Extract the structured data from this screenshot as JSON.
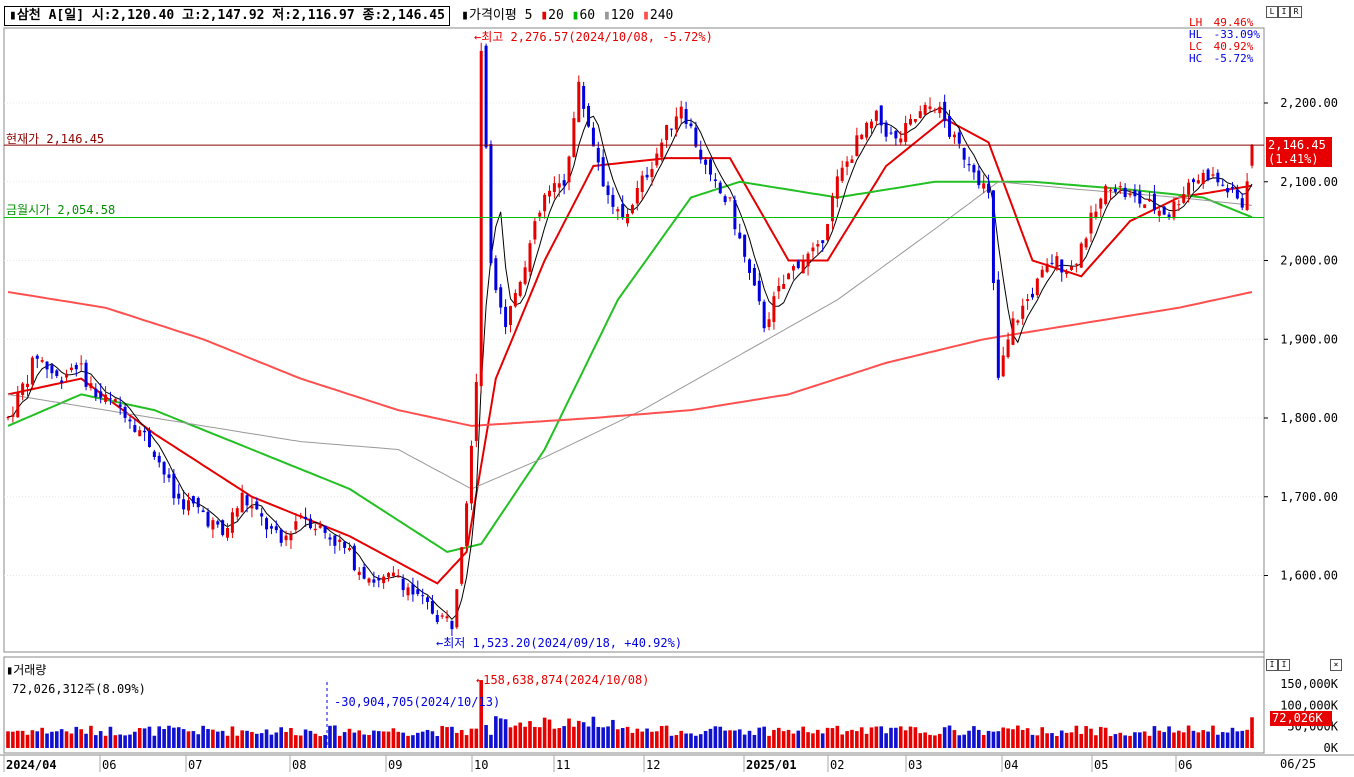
{
  "header": {
    "title": "삼천 A[일] 시:2,120.40 고:2,147.92 저:2,116.97 종:2,146.45",
    "ma_label": "가격이평",
    "ma_periods": [
      "5",
      "20",
      "60",
      "120",
      "240"
    ],
    "ma_colors": [
      "#000000",
      "#e60000",
      "#00b400",
      "#999999",
      "#ff5050"
    ]
  },
  "range_stats": [
    {
      "label": "LH",
      "value": "49.46%",
      "color": "#e60000"
    },
    {
      "label": "HL",
      "value": "-33.09%",
      "color": "#0000e0"
    },
    {
      "label": "LC",
      "value": "40.92%",
      "color": "#e60000"
    },
    {
      "label": "HC",
      "value": "-5.72%",
      "color": "#0000e0"
    }
  ],
  "annotations": {
    "current_price": "현재가 2,146.45",
    "monthly_open": "금월시가 2,054.58",
    "high": "←최고 2,276.57(2024/10/08, -5.72%)",
    "low": "←최저 1,523.20(2024/09/18, +40.92%)",
    "vol_max": "←158,638,874(2024/10/08)",
    "vol_min": "-30,904,705(2024/10/13)"
  },
  "price_tag": {
    "price": "2,146.45",
    "change": "(1.41%)"
  },
  "volume": {
    "title": "거래량",
    "current": "72,026,312주(8.09%)",
    "tag": "72,026K"
  },
  "x_labels": [
    {
      "text": "2024/04",
      "bold": true
    },
    {
      "text": "06",
      "bold": false
    },
    {
      "text": "07",
      "bold": false
    },
    {
      "text": "08",
      "bold": false
    },
    {
      "text": "09",
      "bold": false
    },
    {
      "text": "10",
      "bold": false
    },
    {
      "text": "11",
      "bold": false
    },
    {
      "text": "12",
      "bold": false
    },
    {
      "text": "2025/01",
      "bold": true
    },
    {
      "text": "02",
      "bold": false
    },
    {
      "text": "03",
      "bold": false
    },
    {
      "text": "04",
      "bold": false
    },
    {
      "text": "05",
      "bold": false
    },
    {
      "text": "06",
      "bold": false
    }
  ],
  "x_right_label": "06/25",
  "chart_data": {
    "type": "candlestick",
    "title": "삼천 A[일]",
    "x_range": [
      "2024/04",
      "2025/06/25"
    ],
    "y_price_ticks": [
      "2,200.00",
      "2,100.00",
      "2,000.00",
      "1,900.00",
      "1,800.00",
      "1,700.00",
      "1,600.00"
    ],
    "y_price_values": [
      2200,
      2100,
      2000,
      1900,
      1800,
      1700,
      1600
    ],
    "y_volume_ticks": [
      "150,000K",
      "100,000K",
      "50,000K",
      "0K"
    ],
    "y_volume_values": [
      150000,
      100000,
      50000,
      0
    ],
    "last_bar": {
      "open": 2120.4,
      "high": 2147.92,
      "low": 2116.97,
      "close": 2146.45
    },
    "reference_lines": [
      {
        "name": "현재가",
        "value": 2146.45
      },
      {
        "name": "금월시가",
        "value": 2054.58
      }
    ],
    "period_high": {
      "value": 2276.57,
      "date": "2024/10/08"
    },
    "period_low": {
      "value": 1523.2,
      "date": "2024/09/18"
    },
    "price_path_anchors": [
      [
        0,
        1800
      ],
      [
        6,
        1880
      ],
      [
        10,
        1850
      ],
      [
        14,
        1870
      ],
      [
        18,
        1830
      ],
      [
        24,
        1810
      ],
      [
        30,
        1760
      ],
      [
        34,
        1700
      ],
      [
        40,
        1680
      ],
      [
        44,
        1650
      ],
      [
        48,
        1700
      ],
      [
        52,
        1670
      ],
      [
        56,
        1640
      ],
      [
        60,
        1680
      ],
      [
        64,
        1660
      ],
      [
        68,
        1640
      ],
      [
        72,
        1610
      ],
      [
        76,
        1590
      ],
      [
        80,
        1600
      ],
      [
        84,
        1570
      ],
      [
        88,
        1550
      ],
      [
        91,
        1540
      ],
      [
        94,
        1700
      ],
      [
        96,
        1850
      ],
      [
        97,
        2270
      ],
      [
        99,
        2000
      ],
      [
        102,
        1920
      ],
      [
        106,
        2000
      ],
      [
        110,
        2080
      ],
      [
        114,
        2100
      ],
      [
        117,
        2220
      ],
      [
        120,
        2150
      ],
      [
        123,
        2080
      ],
      [
        126,
        2050
      ],
      [
        130,
        2100
      ],
      [
        134,
        2150
      ],
      [
        138,
        2200
      ],
      [
        141,
        2150
      ],
      [
        144,
        2100
      ],
      [
        148,
        2070
      ],
      [
        152,
        1980
      ],
      [
        155,
        1920
      ],
      [
        158,
        1960
      ],
      [
        162,
        2000
      ],
      [
        166,
        2010
      ],
      [
        170,
        2100
      ],
      [
        174,
        2150
      ],
      [
        178,
        2180
      ],
      [
        182,
        2150
      ],
      [
        186,
        2180
      ],
      [
        190,
        2200
      ],
      [
        194,
        2150
      ],
      [
        198,
        2120
      ],
      [
        201,
        2080
      ],
      [
        203,
        1850
      ],
      [
        206,
        1920
      ],
      [
        210,
        1960
      ],
      [
        214,
        2000
      ],
      [
        218,
        1990
      ],
      [
        222,
        2050
      ],
      [
        226,
        2100
      ],
      [
        230,
        2080
      ],
      [
        234,
        2070
      ],
      [
        238,
        2060
      ],
      [
        242,
        2100
      ],
      [
        246,
        2110
      ],
      [
        250,
        2090
      ],
      [
        253,
        2070
      ],
      [
        255,
        2146.45
      ]
    ],
    "ma_anchors": {
      "MA20": [
        [
          0,
          1830
        ],
        [
          15,
          1850
        ],
        [
          30,
          1780
        ],
        [
          50,
          1700
        ],
        [
          70,
          1650
        ],
        [
          88,
          1590
        ],
        [
          94,
          1630
        ],
        [
          100,
          1850
        ],
        [
          110,
          2000
        ],
        [
          120,
          2120
        ],
        [
          135,
          2130
        ],
        [
          148,
          2130
        ],
        [
          160,
          2000
        ],
        [
          168,
          2000
        ],
        [
          180,
          2120
        ],
        [
          192,
          2180
        ],
        [
          201,
          2150
        ],
        [
          210,
          2000
        ],
        [
          220,
          1980
        ],
        [
          230,
          2050
        ],
        [
          240,
          2080
        ],
        [
          250,
          2090
        ],
        [
          255,
          2095
        ]
      ],
      "MA60": [
        [
          0,
          1790
        ],
        [
          15,
          1830
        ],
        [
          30,
          1810
        ],
        [
          50,
          1760
        ],
        [
          70,
          1710
        ],
        [
          90,
          1630
        ],
        [
          97,
          1640
        ],
        [
          110,
          1760
        ],
        [
          125,
          1950
        ],
        [
          140,
          2080
        ],
        [
          150,
          2100
        ],
        [
          170,
          2080
        ],
        [
          190,
          2100
        ],
        [
          210,
          2100
        ],
        [
          230,
          2090
        ],
        [
          245,
          2080
        ],
        [
          255,
          2055
        ]
      ],
      "MA120": [
        [
          0,
          1830
        ],
        [
          30,
          1800
        ],
        [
          60,
          1770
        ],
        [
          80,
          1760
        ],
        [
          95,
          1710
        ],
        [
          110,
          1750
        ],
        [
          130,
          1810
        ],
        [
          150,
          1880
        ],
        [
          170,
          1950
        ],
        [
          190,
          2040
        ],
        [
          203,
          2100
        ],
        [
          220,
          2090
        ],
        [
          240,
          2080
        ],
        [
          255,
          2070
        ]
      ],
      "MA240": [
        [
          0,
          1960
        ],
        [
          20,
          1940
        ],
        [
          40,
          1900
        ],
        [
          60,
          1850
        ],
        [
          80,
          1810
        ],
        [
          95,
          1790
        ],
        [
          120,
          1800
        ],
        [
          140,
          1810
        ],
        [
          160,
          1830
        ],
        [
          180,
          1870
        ],
        [
          200,
          1900
        ],
        [
          220,
          1920
        ],
        [
          240,
          1940
        ],
        [
          255,
          1960
        ]
      ]
    }
  }
}
